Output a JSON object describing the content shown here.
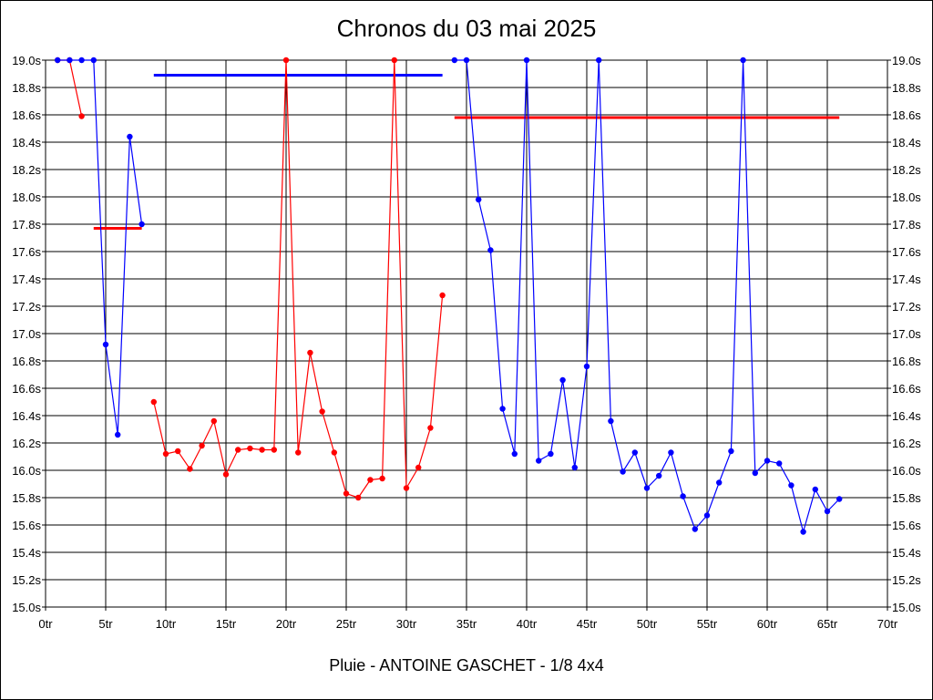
{
  "chart_data": {
    "type": "line",
    "title": "Chronos du 03 mai 2025",
    "subtitle": "Pluie - ANTOINE GASCHET - 1/8 4x4",
    "xlabel": "",
    "ylabel": "",
    "xlim": [
      0,
      70
    ],
    "ylim": [
      15.0,
      19.0
    ],
    "grid": true,
    "x_ticks": [
      0,
      5,
      10,
      15,
      20,
      25,
      30,
      35,
      40,
      45,
      50,
      55,
      60,
      65,
      70
    ],
    "x_tick_labels": [
      "0tr",
      "5tr",
      "10tr",
      "15tr",
      "20tr",
      "25tr",
      "30tr",
      "35tr",
      "40tr",
      "45tr",
      "50tr",
      "55tr",
      "60tr",
      "65tr",
      "70tr"
    ],
    "y_ticks": [
      15.0,
      15.2,
      15.4,
      15.6,
      15.8,
      16.0,
      16.2,
      16.4,
      16.6,
      16.8,
      17.0,
      17.2,
      17.4,
      17.6,
      17.8,
      18.0,
      18.2,
      18.4,
      18.6,
      18.8,
      19.0
    ],
    "y_tick_labels": [
      "15.0s",
      "15.2s",
      "15.4s",
      "15.6s",
      "15.8s",
      "16.0s",
      "16.2s",
      "16.4s",
      "16.6s",
      "16.8s",
      "17.0s",
      "17.2s",
      "17.4s",
      "17.6s",
      "17.8s",
      "18.0s",
      "18.2s",
      "18.4s",
      "18.6s",
      "18.8s",
      "19.0s"
    ],
    "series": [
      {
        "color": "#ff0000",
        "x": [
          1,
          2,
          3
        ],
        "y": [
          19.0,
          19.0,
          18.59
        ]
      },
      {
        "color": "#0000ff",
        "x": [
          1,
          2,
          3,
          4,
          5,
          6,
          7,
          8
        ],
        "y": [
          19.0,
          19.0,
          19.0,
          19.0,
          16.92,
          16.26,
          18.44,
          17.8
        ]
      },
      {
        "color": "#ff0000",
        "x": [
          9,
          10,
          11,
          12,
          13,
          14,
          15,
          16,
          17,
          18,
          19,
          20,
          21,
          22,
          23,
          24,
          25,
          26,
          27,
          28,
          29,
          30,
          31,
          32,
          33
        ],
        "y": [
          16.5,
          16.12,
          16.14,
          16.01,
          16.18,
          16.36,
          15.97,
          16.15,
          16.16,
          16.15,
          16.15,
          19.0,
          16.13,
          16.86,
          16.43,
          16.13,
          15.83,
          15.8,
          15.93,
          15.94,
          19.0,
          15.87,
          16.02,
          16.31,
          17.28
        ]
      },
      {
        "color": "#0000ff",
        "x": [
          34,
          35,
          36,
          37,
          38,
          39,
          40,
          41,
          42,
          43,
          44,
          45,
          46,
          47,
          48,
          49,
          50,
          51,
          52,
          53,
          54,
          55,
          56,
          57,
          58,
          59,
          60,
          61,
          62,
          63,
          64,
          65,
          66
        ],
        "y": [
          19.0,
          19.0,
          17.98,
          17.61,
          16.45,
          16.12,
          19.0,
          16.07,
          16.12,
          16.66,
          16.02,
          16.76,
          19.0,
          16.36,
          15.99,
          16.13,
          15.87,
          15.96,
          16.13,
          15.81,
          15.57,
          15.67,
          15.91,
          16.14,
          19.0,
          15.98,
          16.07,
          16.05,
          15.89,
          15.55,
          15.86,
          15.7,
          15.79
        ]
      }
    ],
    "reference_lines": [
      {
        "color": "#ff0000",
        "x": [
          4,
          8
        ],
        "y": 17.77
      },
      {
        "color": "#0000ff",
        "x": [
          9,
          33
        ],
        "y": 18.89
      },
      {
        "color": "#ff0000",
        "x": [
          34,
          66
        ],
        "y": 18.58
      }
    ]
  }
}
